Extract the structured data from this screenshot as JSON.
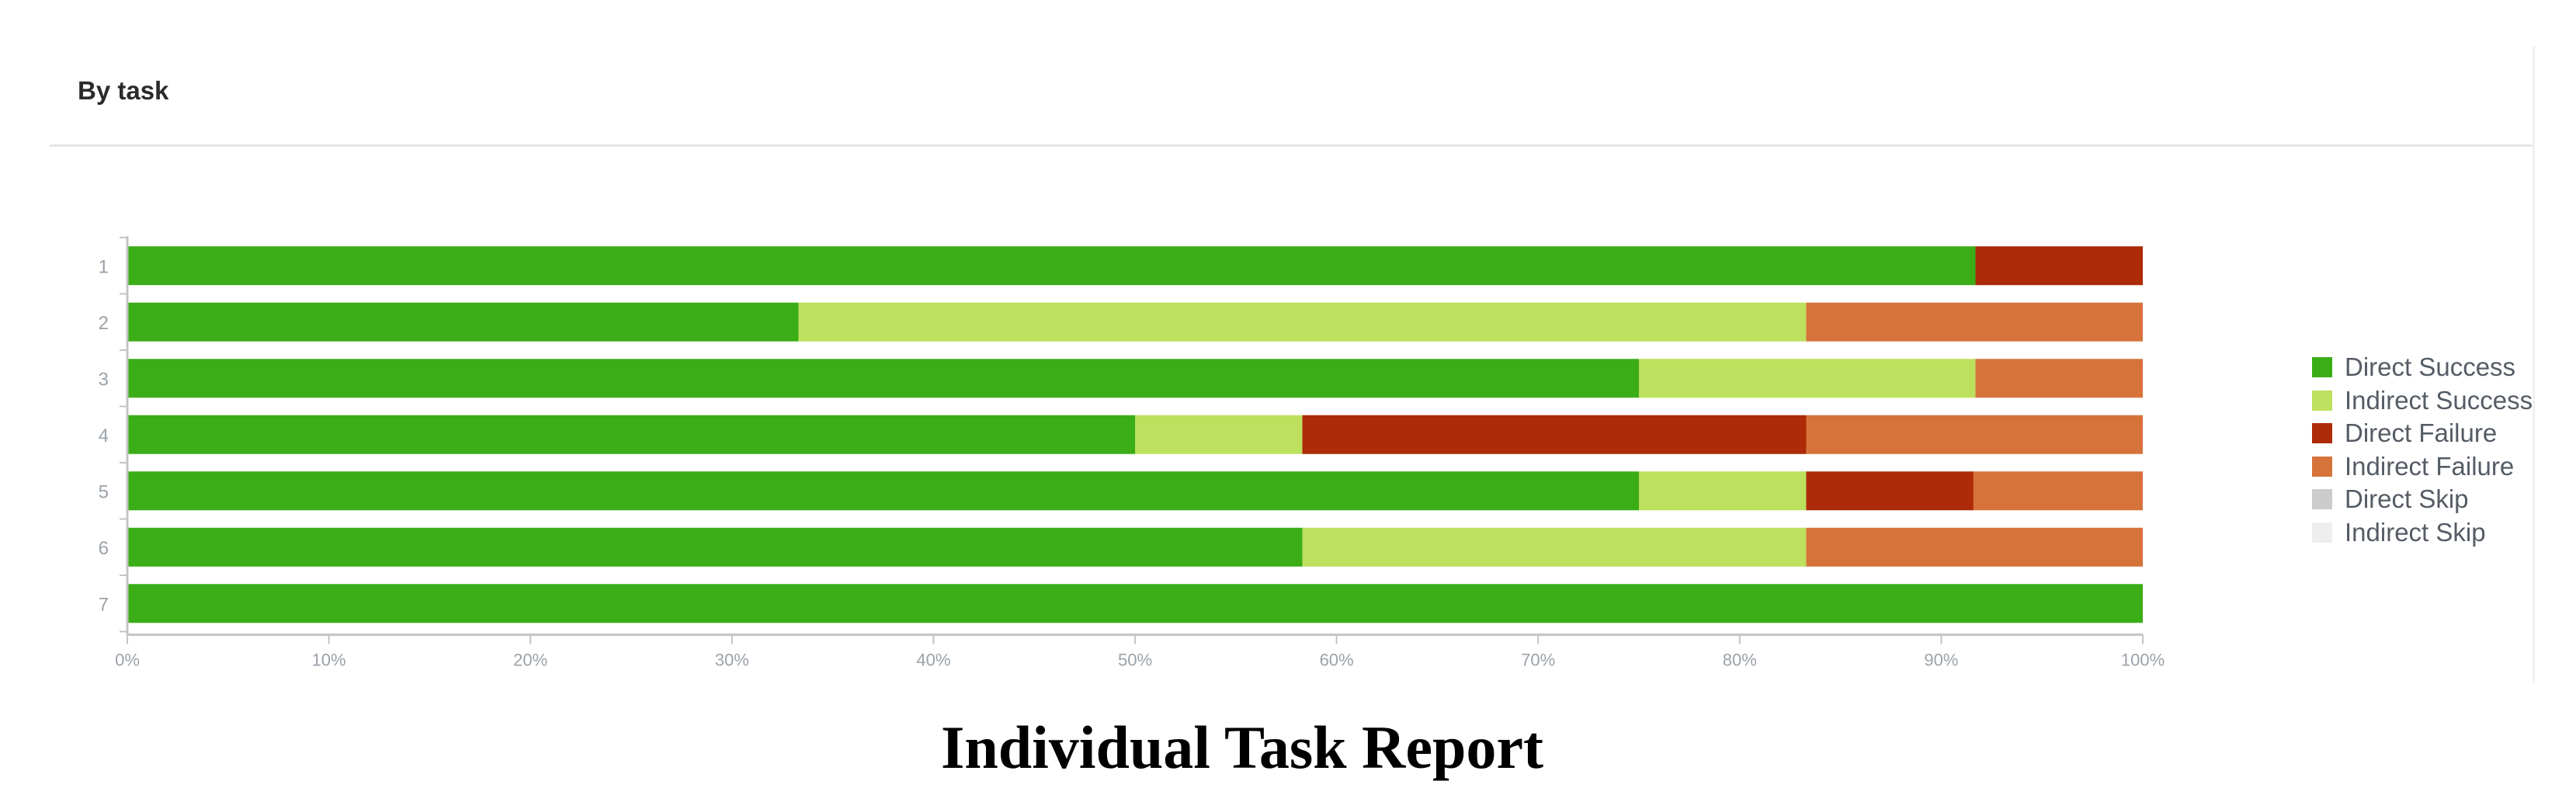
{
  "panel": {
    "title": "By task"
  },
  "caption": "Individual Task Report",
  "colors": {
    "direct_success": "#3bad17",
    "indirect_success": "#bde05e",
    "direct_failure": "#ad2b08",
    "indirect_failure": "#d6733b",
    "direct_skip": "#cccccc",
    "indirect_skip": "#eeeeee",
    "axis": "#c4c4c4",
    "tick_text": "#9aa2aa"
  },
  "chart_data": {
    "type": "bar",
    "orientation": "horizontal",
    "stacked": true,
    "percent": true,
    "categories": [
      "1",
      "2",
      "3",
      "4",
      "5",
      "6",
      "7"
    ],
    "series": [
      {
        "name": "Direct Success",
        "color": "#3bad17",
        "values": [
          91.7,
          33.3,
          75.0,
          50.0,
          75.0,
          58.3,
          100
        ]
      },
      {
        "name": "Indirect Success",
        "color": "#bde05e",
        "values": [
          0,
          50.0,
          16.7,
          8.3,
          8.3,
          25.0,
          0
        ]
      },
      {
        "name": "Direct Failure",
        "color": "#ad2b08",
        "values": [
          8.3,
          0,
          0,
          25.0,
          8.3,
          0,
          0
        ]
      },
      {
        "name": "Indirect Failure",
        "color": "#d6733b",
        "values": [
          0,
          16.7,
          8.3,
          16.7,
          8.4,
          16.7,
          0
        ]
      },
      {
        "name": "Direct Skip",
        "color": "#cccccc",
        "values": [
          0,
          0,
          0,
          0,
          0,
          0,
          0
        ]
      },
      {
        "name": "Indirect Skip",
        "color": "#eeeeee",
        "values": [
          0,
          0,
          0,
          0,
          0,
          0,
          0
        ]
      }
    ],
    "xlim": [
      0,
      100
    ],
    "xticks": [
      "0%",
      "10%",
      "20%",
      "30%",
      "40%",
      "50%",
      "60%",
      "70%",
      "80%",
      "90%",
      "100%"
    ],
    "grid": false,
    "legend": "right"
  }
}
